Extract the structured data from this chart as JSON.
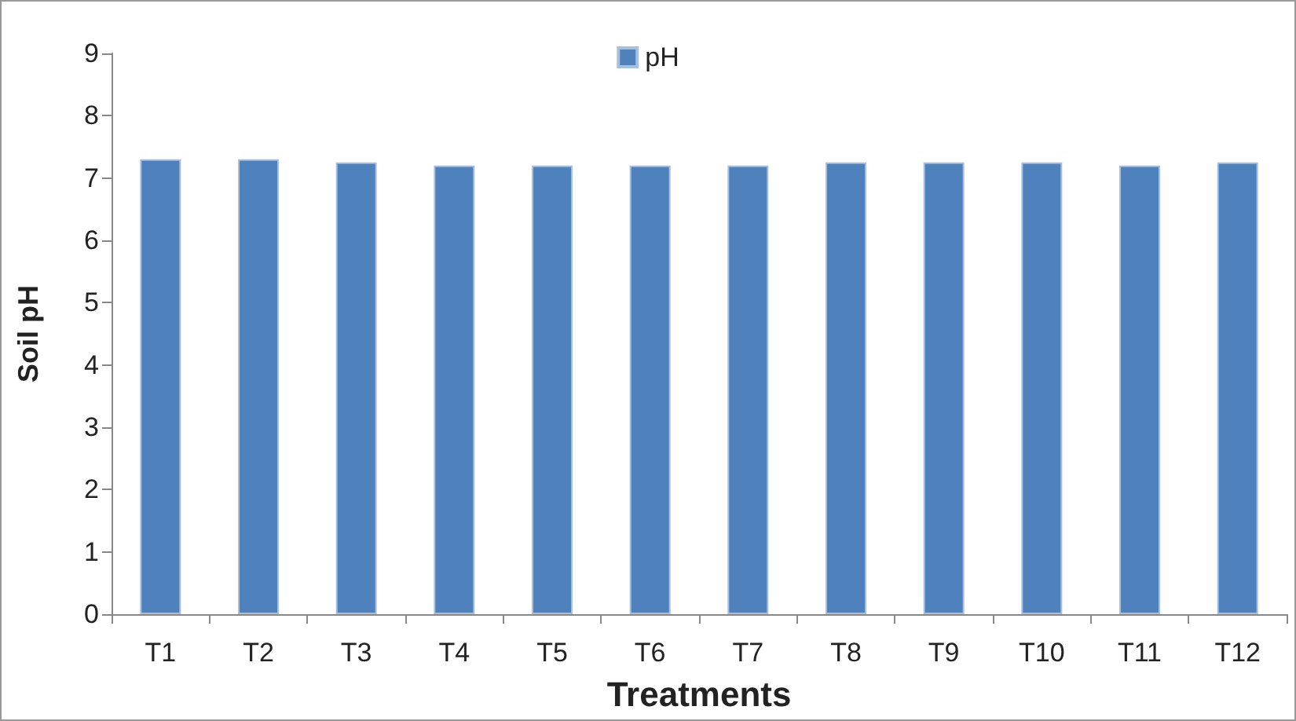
{
  "chart_data": {
    "type": "bar",
    "xlabel": "Treatments",
    "ylabel": "Soil pH",
    "categories": [
      "T1",
      "T2",
      "T3",
      "T4",
      "T5",
      "T6",
      "T7",
      "T8",
      "T9",
      "T10",
      "T11",
      "T12"
    ],
    "series": [
      {
        "name": "pH",
        "color": "#4f81bd",
        "values": [
          7.3,
          7.3,
          7.25,
          7.2,
          7.2,
          7.2,
          7.2,
          7.25,
          7.25,
          7.25,
          7.2,
          7.25
        ]
      }
    ],
    "ylim": [
      0,
      9
    ],
    "yticks": [
      0,
      1,
      2,
      3,
      4,
      5,
      6,
      7,
      8,
      9
    ],
    "grid": false,
    "legend": "top"
  }
}
